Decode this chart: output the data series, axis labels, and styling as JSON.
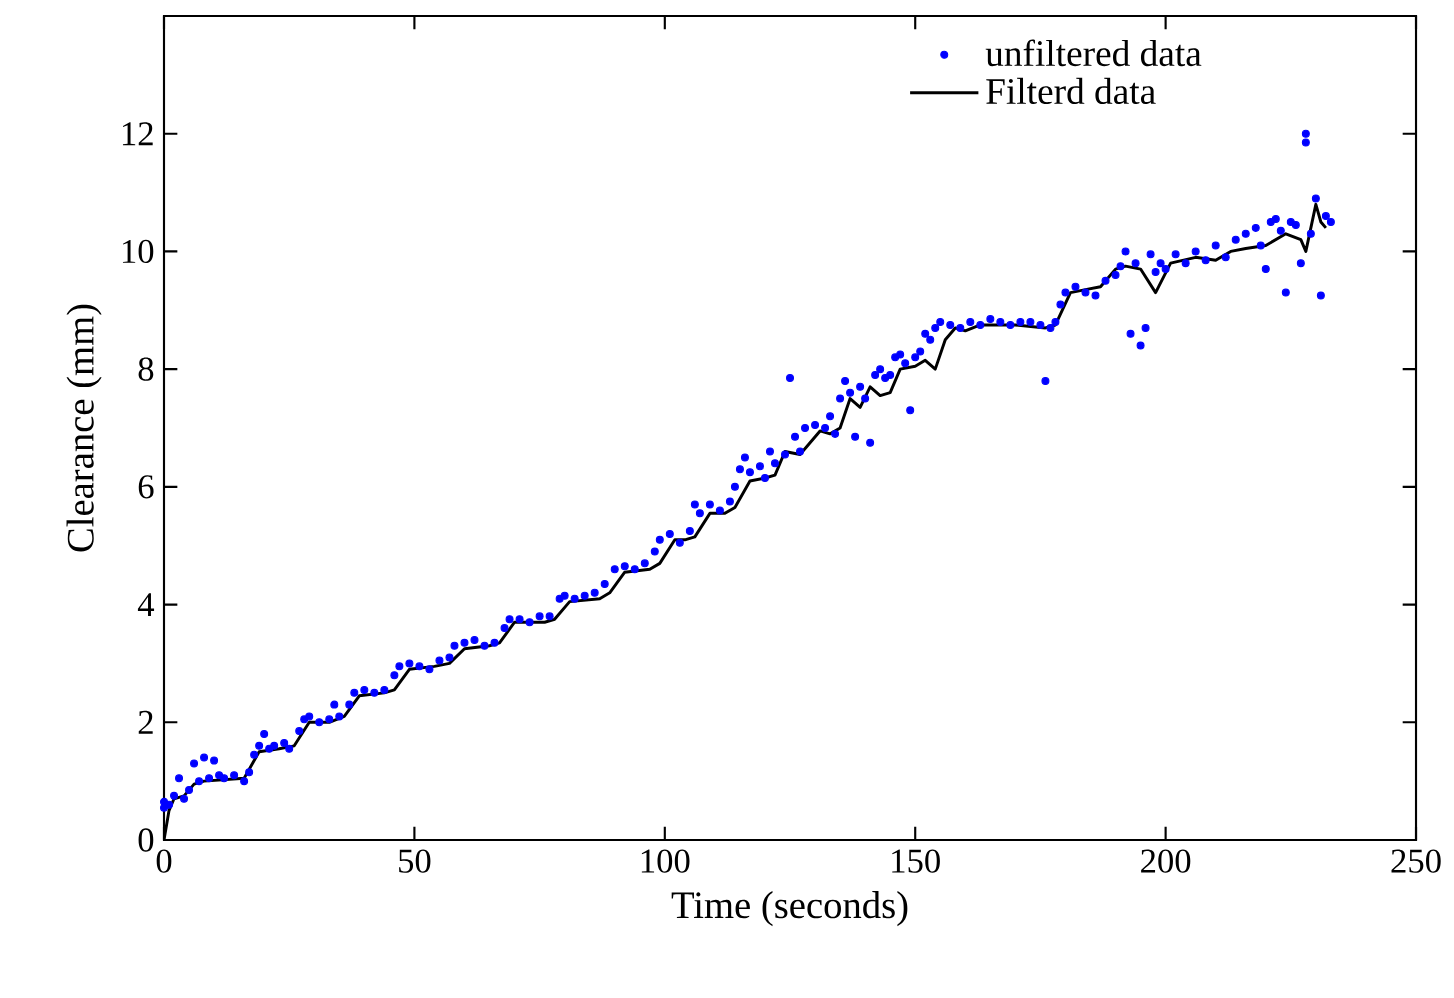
{
  "chart_data": {
    "type": "scatter",
    "xlabel": "Time (seconds)",
    "ylabel": "Clearance (mm)",
    "xlim": [
      0,
      250
    ],
    "ylim": [
      0,
      14
    ],
    "xticks": [
      0,
      50,
      100,
      150,
      200,
      250
    ],
    "yticks": [
      0,
      2,
      4,
      6,
      8,
      10,
      12
    ],
    "legend": "top right",
    "series": [
      {
        "name": "unfiltered data",
        "marker": "circle",
        "color": "#0000ff",
        "x": [
          0,
          0,
          1,
          2,
          3,
          4,
          5,
          6,
          7,
          8,
          9,
          10,
          11,
          12,
          14,
          16,
          17,
          18,
          19,
          20,
          21,
          22,
          24,
          25,
          27,
          28,
          29,
          31,
          33,
          34,
          35,
          37,
          38,
          40,
          42,
          44,
          46,
          47,
          49,
          51,
          53,
          55,
          57,
          58,
          60,
          62,
          64,
          66,
          68,
          69,
          71,
          73,
          75,
          77,
          79,
          80,
          82,
          84,
          86,
          88,
          90,
          92,
          94,
          96,
          98,
          99,
          101,
          103,
          105,
          106,
          107,
          109,
          111,
          113,
          114,
          115,
          116,
          117,
          119,
          120,
          121,
          122,
          124,
          125,
          126,
          127,
          128,
          130,
          132,
          133,
          134,
          135,
          136,
          137,
          138,
          139,
          140,
          141,
          142,
          143,
          144,
          145,
          146,
          147,
          148,
          149,
          150,
          151,
          152,
          153,
          154,
          155,
          157,
          159,
          161,
          163,
          165,
          167,
          169,
          171,
          173,
          175,
          176,
          177,
          178,
          179,
          180,
          182,
          184,
          186,
          188,
          190,
          191,
          192,
          193,
          194,
          195,
          196,
          197,
          198,
          199,
          200,
          202,
          204,
          206,
          208,
          210,
          212,
          214,
          216,
          218,
          219,
          220,
          221,
          222,
          223,
          224,
          225,
          226,
          227,
          228,
          228,
          229,
          230,
          231,
          232,
          233
        ],
        "values": [
          0.55,
          0.65,
          0.6,
          0.75,
          1.05,
          0.7,
          0.85,
          1.3,
          1.0,
          1.4,
          1.05,
          1.35,
          1.1,
          1.05,
          1.1,
          1.0,
          1.15,
          1.45,
          1.6,
          1.8,
          1.55,
          1.6,
          1.65,
          1.55,
          1.85,
          2.05,
          2.1,
          2.0,
          2.05,
          2.3,
          2.1,
          2.3,
          2.5,
          2.55,
          2.5,
          2.55,
          2.8,
          2.95,
          3.0,
          2.95,
          2.9,
          3.05,
          3.1,
          3.3,
          3.35,
          3.4,
          3.3,
          3.35,
          3.6,
          3.75,
          3.75,
          3.7,
          3.8,
          3.8,
          4.1,
          4.15,
          4.1,
          4.15,
          4.2,
          4.35,
          4.6,
          4.65,
          4.6,
          4.7,
          4.9,
          5.1,
          5.2,
          5.05,
          5.25,
          5.7,
          5.55,
          5.7,
          5.6,
          5.75,
          6.0,
          6.3,
          6.5,
          6.25,
          6.35,
          6.15,
          6.6,
          6.4,
          6.55,
          7.85,
          6.85,
          6.6,
          7.0,
          7.05,
          7.0,
          7.2,
          6.9,
          7.5,
          7.8,
          7.6,
          6.85,
          7.7,
          7.5,
          6.75,
          7.9,
          8.0,
          7.85,
          7.9,
          8.2,
          8.25,
          8.1,
          7.3,
          8.2,
          8.3,
          8.6,
          8.5,
          8.7,
          8.8,
          8.75,
          8.7,
          8.8,
          8.75,
          8.85,
          8.8,
          8.75,
          8.8,
          8.8,
          8.75,
          7.8,
          8.7,
          8.8,
          9.1,
          9.3,
          9.4,
          9.3,
          9.25,
          9.5,
          9.6,
          9.75,
          10.0,
          8.6,
          9.8,
          8.4,
          8.7,
          9.95,
          9.65,
          9.8,
          9.7,
          9.95,
          9.8,
          10.0,
          9.85,
          10.1,
          9.9,
          10.2,
          10.3,
          10.4,
          10.1,
          9.7,
          10.5,
          10.55,
          10.35,
          9.3,
          10.5,
          10.45,
          9.8,
          12.0,
          11.85,
          10.3,
          10.9,
          9.25,
          10.6,
          10.5
        ]
      },
      {
        "name": "Filterd data",
        "type": "line",
        "marker": "none",
        "line_style": "solid",
        "color": "#000000",
        "x": [
          0,
          1,
          2,
          4,
          6,
          8,
          16,
          19,
          23,
          26,
          29,
          33,
          36,
          39,
          44,
          46,
          49,
          54,
          57,
          60,
          65,
          67,
          70,
          76,
          78,
          81,
          87,
          89,
          92,
          97,
          99,
          102,
          104,
          106,
          109,
          112,
          114,
          117,
          120,
          122,
          124,
          127,
          129,
          131,
          133,
          135,
          137,
          139,
          141,
          143,
          145,
          147,
          150,
          152,
          154,
          156,
          158,
          160,
          163,
          170,
          176,
          178,
          181,
          184,
          187,
          190,
          192,
          195,
          198,
          201,
          206,
          210,
          213,
          216,
          220,
          224,
          227,
          228,
          230,
          231,
          232
        ],
        "values": [
          0,
          0.5,
          0.7,
          0.75,
          0.95,
          1.0,
          1.05,
          1.5,
          1.55,
          1.6,
          2.0,
          2.0,
          2.1,
          2.45,
          2.5,
          2.55,
          2.9,
          2.95,
          3.0,
          3.25,
          3.3,
          3.35,
          3.7,
          3.7,
          3.75,
          4.05,
          4.1,
          4.2,
          4.55,
          4.6,
          4.7,
          5.1,
          5.1,
          5.15,
          5.55,
          5.55,
          5.65,
          6.1,
          6.15,
          6.2,
          6.6,
          6.55,
          6.75,
          6.95,
          6.9,
          7.0,
          7.5,
          7.35,
          7.7,
          7.55,
          7.6,
          8.0,
          8.05,
          8.15,
          8.0,
          8.5,
          8.7,
          8.65,
          8.75,
          8.75,
          8.7,
          8.75,
          9.3,
          9.35,
          9.4,
          9.7,
          9.75,
          9.7,
          9.3,
          9.8,
          9.9,
          9.85,
          10.0,
          10.05,
          10.1,
          10.3,
          10.2,
          10.0,
          10.8,
          10.5,
          10.4
        ]
      }
    ]
  }
}
